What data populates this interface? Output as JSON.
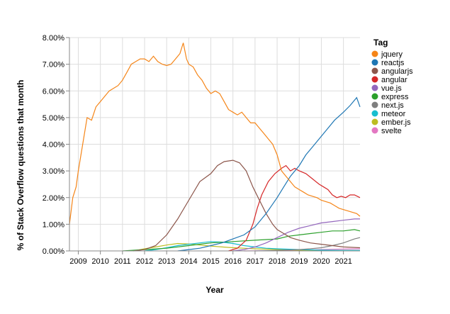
{
  "chart_data": {
    "type": "line",
    "xlabel": "Year",
    "ylabel": "% of Stack Overflow questions that month",
    "ylim": [
      0,
      8
    ],
    "y_ticks": [
      0,
      1,
      2,
      3,
      4,
      5,
      6,
      7,
      8
    ],
    "y_tick_labels": [
      "0.00%",
      "1.00%",
      "2.00%",
      "3.00%",
      "4.00%",
      "5.00%",
      "6.00%",
      "7.00%",
      "8.00%"
    ],
    "xlim": [
      2008.6,
      2021.75
    ],
    "x_ticks": [
      2009,
      2010,
      2011,
      2012,
      2013,
      2014,
      2015,
      2016,
      2017,
      2018,
      2019,
      2020,
      2021
    ],
    "x_tick_labels": [
      "2009",
      "2010",
      "2011",
      "2012",
      "2013",
      "2014",
      "2015",
      "2016",
      "2017",
      "2018",
      "2019",
      "2020",
      "2021"
    ],
    "grid": true,
    "legend": {
      "title": "Tag",
      "position": "right"
    },
    "series": [
      {
        "name": "jquery",
        "color": "#f58518",
        "points": [
          [
            2008.6,
            1.0
          ],
          [
            2008.75,
            2.0
          ],
          [
            2008.9,
            2.4
          ],
          [
            2009.0,
            3.0
          ],
          [
            2009.2,
            4.0
          ],
          [
            2009.4,
            5.0
          ],
          [
            2009.6,
            4.9
          ],
          [
            2009.8,
            5.4
          ],
          [
            2010.0,
            5.6
          ],
          [
            2010.2,
            5.8
          ],
          [
            2010.4,
            6.0
          ],
          [
            2010.6,
            6.1
          ],
          [
            2010.8,
            6.2
          ],
          [
            2011.0,
            6.4
          ],
          [
            2011.2,
            6.7
          ],
          [
            2011.4,
            7.0
          ],
          [
            2011.6,
            7.1
          ],
          [
            2011.8,
            7.2
          ],
          [
            2012.0,
            7.2
          ],
          [
            2012.2,
            7.1
          ],
          [
            2012.4,
            7.3
          ],
          [
            2012.6,
            7.1
          ],
          [
            2012.8,
            7.0
          ],
          [
            2013.0,
            6.95
          ],
          [
            2013.2,
            7.0
          ],
          [
            2013.4,
            7.2
          ],
          [
            2013.6,
            7.4
          ],
          [
            2013.75,
            7.8
          ],
          [
            2013.9,
            7.2
          ],
          [
            2014.0,
            7.0
          ],
          [
            2014.2,
            6.9
          ],
          [
            2014.4,
            6.6
          ],
          [
            2014.6,
            6.4
          ],
          [
            2014.8,
            6.1
          ],
          [
            2015.0,
            5.9
          ],
          [
            2015.2,
            6.0
          ],
          [
            2015.4,
            5.9
          ],
          [
            2015.6,
            5.6
          ],
          [
            2015.8,
            5.3
          ],
          [
            2016.0,
            5.2
          ],
          [
            2016.2,
            5.1
          ],
          [
            2016.4,
            5.2
          ],
          [
            2016.6,
            5.0
          ],
          [
            2016.8,
            4.8
          ],
          [
            2017.0,
            4.8
          ],
          [
            2017.2,
            4.6
          ],
          [
            2017.4,
            4.4
          ],
          [
            2017.6,
            4.2
          ],
          [
            2017.8,
            4.0
          ],
          [
            2018.0,
            3.6
          ],
          [
            2018.2,
            3.0
          ],
          [
            2018.4,
            2.8
          ],
          [
            2018.6,
            2.6
          ],
          [
            2018.8,
            2.4
          ],
          [
            2019.0,
            2.3
          ],
          [
            2019.2,
            2.2
          ],
          [
            2019.4,
            2.1
          ],
          [
            2019.6,
            2.05
          ],
          [
            2019.8,
            2.0
          ],
          [
            2020.0,
            1.9
          ],
          [
            2020.2,
            1.85
          ],
          [
            2020.4,
            1.8
          ],
          [
            2020.6,
            1.7
          ],
          [
            2020.8,
            1.6
          ],
          [
            2021.0,
            1.55
          ],
          [
            2021.2,
            1.5
          ],
          [
            2021.4,
            1.45
          ],
          [
            2021.6,
            1.4
          ],
          [
            2021.75,
            1.3
          ]
        ]
      },
      {
        "name": "reactjs",
        "color": "#1f77b4",
        "points": [
          [
            2013.5,
            0.0
          ],
          [
            2014.0,
            0.05
          ],
          [
            2014.5,
            0.1
          ],
          [
            2015.0,
            0.2
          ],
          [
            2015.5,
            0.3
          ],
          [
            2016.0,
            0.45
          ],
          [
            2016.5,
            0.6
          ],
          [
            2017.0,
            0.9
          ],
          [
            2017.5,
            1.4
          ],
          [
            2018.0,
            2.0
          ],
          [
            2018.3,
            2.4
          ],
          [
            2018.6,
            2.8
          ],
          [
            2019.0,
            3.2
          ],
          [
            2019.3,
            3.6
          ],
          [
            2019.6,
            3.9
          ],
          [
            2020.0,
            4.3
          ],
          [
            2020.3,
            4.6
          ],
          [
            2020.6,
            4.9
          ],
          [
            2021.0,
            5.2
          ],
          [
            2021.3,
            5.45
          ],
          [
            2021.6,
            5.75
          ],
          [
            2021.75,
            5.4
          ]
        ]
      },
      {
        "name": "angularjs",
        "color": "#8c564b",
        "points": [
          [
            2011.5,
            0.0
          ],
          [
            2012.0,
            0.05
          ],
          [
            2012.5,
            0.2
          ],
          [
            2013.0,
            0.6
          ],
          [
            2013.5,
            1.2
          ],
          [
            2014.0,
            1.9
          ],
          [
            2014.5,
            2.6
          ],
          [
            2015.0,
            2.9
          ],
          [
            2015.3,
            3.2
          ],
          [
            2015.6,
            3.35
          ],
          [
            2016.0,
            3.4
          ],
          [
            2016.3,
            3.3
          ],
          [
            2016.6,
            3.0
          ],
          [
            2016.9,
            2.4
          ],
          [
            2017.2,
            1.9
          ],
          [
            2017.5,
            1.4
          ],
          [
            2017.8,
            1.0
          ],
          [
            2018.0,
            0.8
          ],
          [
            2018.3,
            0.65
          ],
          [
            2018.6,
            0.5
          ],
          [
            2019.0,
            0.4
          ],
          [
            2019.5,
            0.3
          ],
          [
            2020.0,
            0.25
          ],
          [
            2020.5,
            0.2
          ],
          [
            2021.0,
            0.15
          ],
          [
            2021.75,
            0.12
          ]
        ]
      },
      {
        "name": "angular",
        "color": "#d62728",
        "points": [
          [
            2015.8,
            0.0
          ],
          [
            2016.2,
            0.1
          ],
          [
            2016.6,
            0.4
          ],
          [
            2016.9,
            1.0
          ],
          [
            2017.1,
            1.6
          ],
          [
            2017.3,
            2.1
          ],
          [
            2017.6,
            2.6
          ],
          [
            2017.9,
            2.9
          ],
          [
            2018.2,
            3.1
          ],
          [
            2018.4,
            3.2
          ],
          [
            2018.6,
            3.0
          ],
          [
            2018.8,
            3.1
          ],
          [
            2019.0,
            3.0
          ],
          [
            2019.3,
            2.9
          ],
          [
            2019.6,
            2.7
          ],
          [
            2019.9,
            2.5
          ],
          [
            2020.1,
            2.4
          ],
          [
            2020.3,
            2.3
          ],
          [
            2020.5,
            2.1
          ],
          [
            2020.7,
            2.0
          ],
          [
            2020.9,
            2.05
          ],
          [
            2021.1,
            2.0
          ],
          [
            2021.3,
            2.1
          ],
          [
            2021.5,
            2.1
          ],
          [
            2021.75,
            2.0
          ]
        ]
      },
      {
        "name": "vue.js",
        "color": "#9467bd",
        "points": [
          [
            2016.0,
            0.0
          ],
          [
            2016.5,
            0.05
          ],
          [
            2017.0,
            0.15
          ],
          [
            2017.5,
            0.3
          ],
          [
            2018.0,
            0.5
          ],
          [
            2018.5,
            0.7
          ],
          [
            2019.0,
            0.85
          ],
          [
            2019.5,
            0.95
          ],
          [
            2020.0,
            1.05
          ],
          [
            2020.5,
            1.1
          ],
          [
            2021.0,
            1.15
          ],
          [
            2021.5,
            1.2
          ],
          [
            2021.75,
            1.2
          ]
        ]
      },
      {
        "name": "express",
        "color": "#2ca02c",
        "points": [
          [
            2011.0,
            0.0
          ],
          [
            2012.0,
            0.05
          ],
          [
            2013.0,
            0.1
          ],
          [
            2014.0,
            0.2
          ],
          [
            2015.0,
            0.3
          ],
          [
            2016.0,
            0.35
          ],
          [
            2017.0,
            0.4
          ],
          [
            2018.0,
            0.45
          ],
          [
            2018.5,
            0.55
          ],
          [
            2019.0,
            0.6
          ],
          [
            2019.5,
            0.65
          ],
          [
            2020.0,
            0.7
          ],
          [
            2020.5,
            0.75
          ],
          [
            2021.0,
            0.75
          ],
          [
            2021.5,
            0.8
          ],
          [
            2021.75,
            0.75
          ]
        ]
      },
      {
        "name": "next.js",
        "color": "#7f7f7f",
        "points": [
          [
            2017.0,
            0.0
          ],
          [
            2018.0,
            0.02
          ],
          [
            2019.0,
            0.05
          ],
          [
            2019.5,
            0.08
          ],
          [
            2020.0,
            0.12
          ],
          [
            2020.5,
            0.2
          ],
          [
            2021.0,
            0.3
          ],
          [
            2021.5,
            0.45
          ],
          [
            2021.75,
            0.5
          ]
        ]
      },
      {
        "name": "meteor",
        "color": "#17becf",
        "points": [
          [
            2012.0,
            0.0
          ],
          [
            2012.5,
            0.05
          ],
          [
            2013.0,
            0.12
          ],
          [
            2013.5,
            0.2
          ],
          [
            2014.0,
            0.25
          ],
          [
            2014.5,
            0.3
          ],
          [
            2015.0,
            0.35
          ],
          [
            2015.5,
            0.33
          ],
          [
            2016.0,
            0.28
          ],
          [
            2016.5,
            0.2
          ],
          [
            2017.0,
            0.15
          ],
          [
            2017.5,
            0.1
          ],
          [
            2018.0,
            0.08
          ],
          [
            2019.0,
            0.05
          ],
          [
            2020.0,
            0.03
          ],
          [
            2021.0,
            0.02
          ],
          [
            2021.75,
            0.02
          ]
        ]
      },
      {
        "name": "ember.js",
        "color": "#bcbd22",
        "points": [
          [
            2011.5,
            0.0
          ],
          [
            2012.0,
            0.08
          ],
          [
            2012.5,
            0.15
          ],
          [
            2013.0,
            0.22
          ],
          [
            2013.5,
            0.28
          ],
          [
            2014.0,
            0.26
          ],
          [
            2014.5,
            0.22
          ],
          [
            2015.0,
            0.18
          ],
          [
            2015.5,
            0.15
          ],
          [
            2016.0,
            0.12
          ],
          [
            2016.5,
            0.1
          ],
          [
            2017.0,
            0.08
          ],
          [
            2018.0,
            0.05
          ],
          [
            2019.0,
            0.03
          ],
          [
            2020.0,
            0.02
          ],
          [
            2021.75,
            0.01
          ]
        ]
      },
      {
        "name": "svelte",
        "color": "#e377c2",
        "points": [
          [
            2016.5,
            0.0
          ],
          [
            2018.0,
            0.01
          ],
          [
            2019.0,
            0.02
          ],
          [
            2020.0,
            0.05
          ],
          [
            2020.5,
            0.06
          ],
          [
            2021.0,
            0.07
          ],
          [
            2021.75,
            0.08
          ]
        ]
      }
    ]
  }
}
